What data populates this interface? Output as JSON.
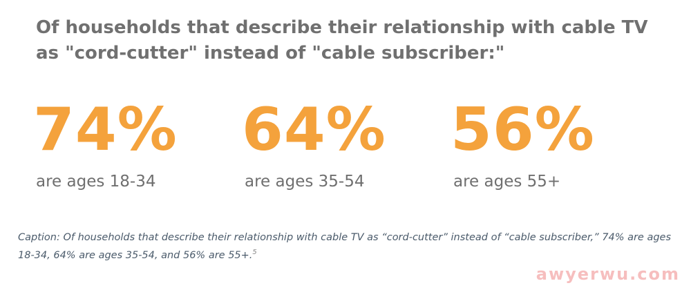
{
  "title": {
    "line1": "Of households that describe their relationship with cable TV",
    "line2": "as \"cord-cutter\" instead of \"cable subscriber:\""
  },
  "stats": [
    {
      "value": "74%",
      "label": "are ages 18-34"
    },
    {
      "value": "64%",
      "label": "are ages 35-54"
    },
    {
      "value": "56%",
      "label": "are ages 55+"
    }
  ],
  "caption": {
    "text": "Caption: Of households that describe their relationship with cable TV as “cord-cutter” instead of “cable subscriber,” 74% are ages 18-34, 64% are ages 35-54, and 56% are 55+.",
    "footnote": "5"
  },
  "watermark": "awyerwu.com",
  "colors": {
    "accent": "#f4a23c",
    "title": "#707070",
    "label": "#6f6f6f",
    "caption": "#4a5a6a"
  }
}
